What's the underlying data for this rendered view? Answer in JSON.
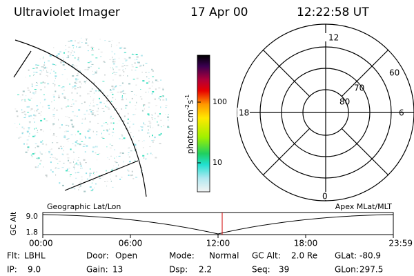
{
  "header": {
    "title": "Ultraviolet Imager",
    "date": "17 Apr 00",
    "time": "12:22:58 UT"
  },
  "colorbar": {
    "unit_parts": [
      "photon cm",
      "-2",
      "s",
      "-1"
    ],
    "ticks": [
      "100",
      "10"
    ]
  },
  "polar": {
    "mlt_labels": [
      "12",
      "18",
      "6",
      "0"
    ],
    "lat_labels": [
      "60",
      "70",
      "80"
    ]
  },
  "strip": {
    "left_label": "Geographic Lat/Lon",
    "right_label": "Apex MLat/MLT",
    "axis_label": "GC Alt",
    "yticks": [
      "9.0",
      "1.8"
    ],
    "xticks": [
      "00:00",
      "06:00",
      "12:00",
      "18:00",
      "23:59"
    ]
  },
  "footer": {
    "rows": [
      [
        [
          "Flt:",
          "LBHL"
        ],
        [
          "Door:",
          "Open"
        ],
        [
          "Mode:",
          "Normal"
        ],
        [
          "GC Alt:",
          "2.0 Re"
        ],
        [
          "GLat:",
          "-80.9"
        ]
      ],
      [
        [
          "IP:",
          "9.0"
        ],
        [
          "Gain:",
          "13"
        ],
        [
          "Dsp:",
          "2.2"
        ],
        [
          "Seq:",
          "39"
        ],
        [
          "GLon:",
          "297.5"
        ]
      ]
    ]
  }
}
